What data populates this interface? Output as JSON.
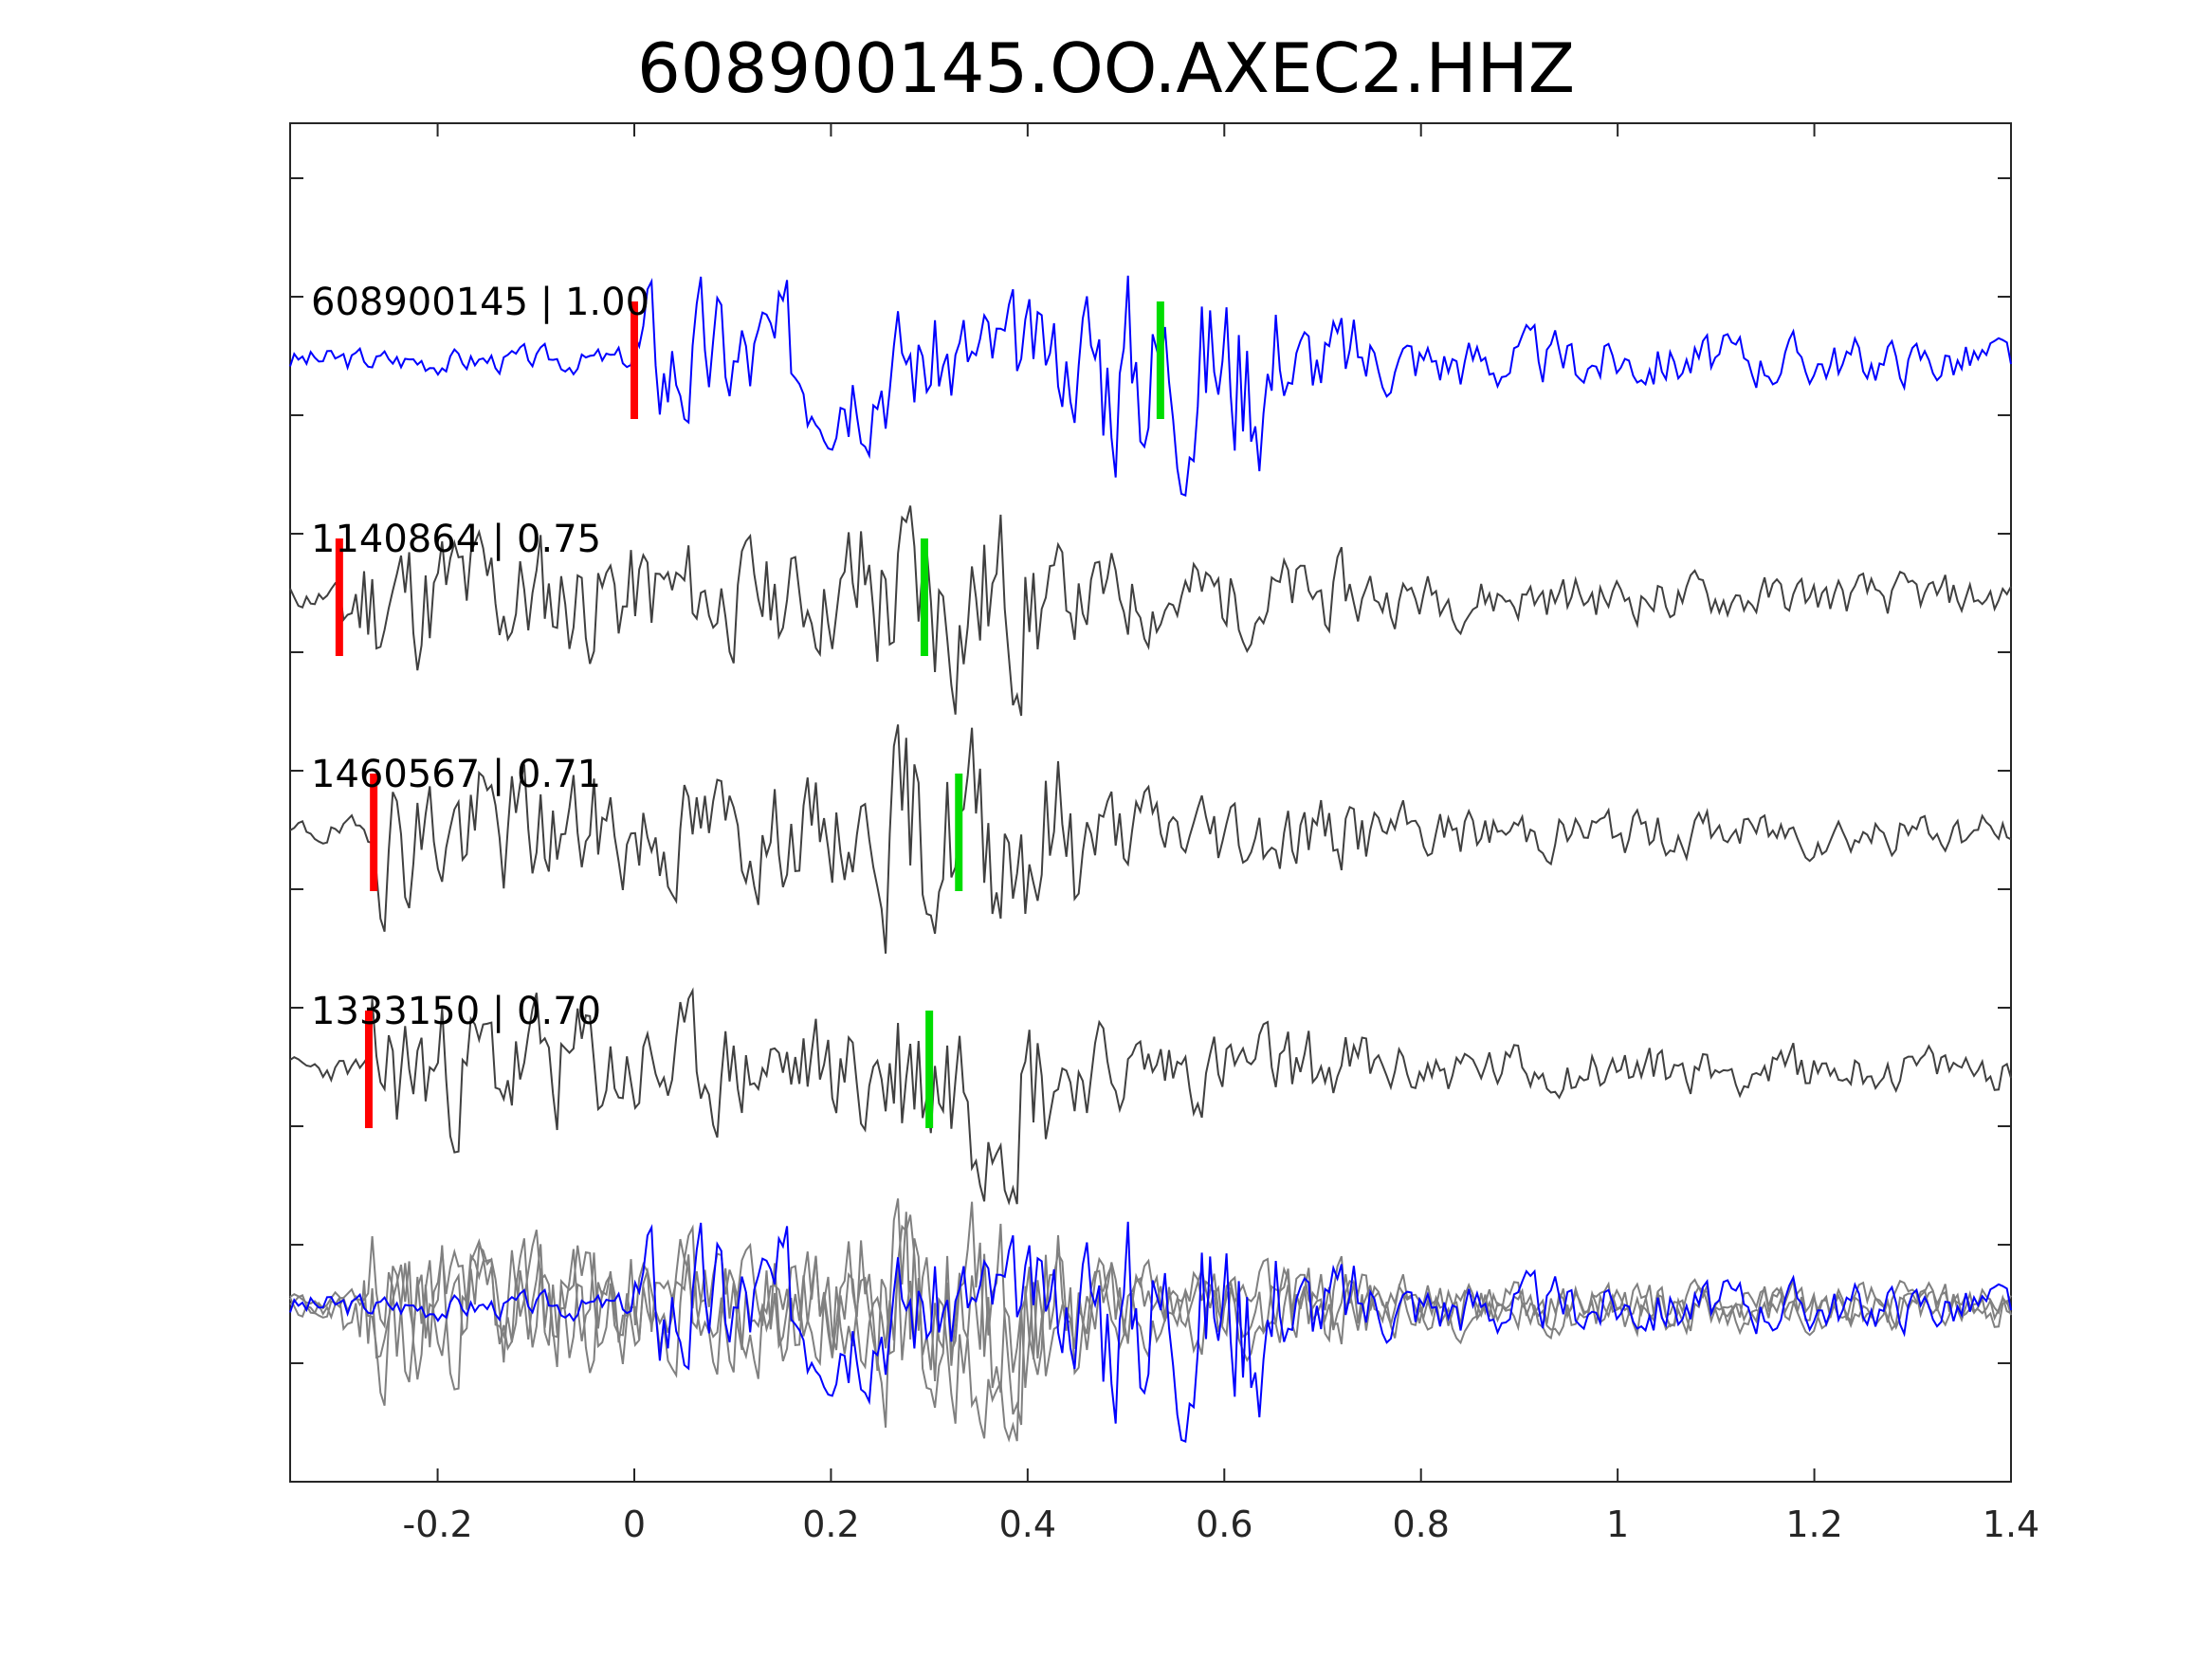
{
  "chart_data": {
    "type": "line",
    "title": "608900145.OO.AXEC2.HHZ",
    "xlabel": "",
    "ylabel": "",
    "xlim": [
      -0.35,
      1.4
    ],
    "x_ticks": [
      "-0.2",
      "0",
      "0.2",
      "0.4",
      "0.6",
      "0.8",
      "1",
      "1.2",
      "1.4"
    ],
    "x_tick_values": [
      -0.2,
      0,
      0.2,
      0.4,
      0.6,
      0.8,
      1.0,
      1.2,
      1.4
    ],
    "grid": false,
    "colors": {
      "master": "#0000ff",
      "event": "#404040",
      "overlay": "#808080",
      "p_pick": "#ff0000",
      "s_pick": "#00dd00"
    },
    "traces": [
      {
        "id": "608900145",
        "cc": "1.00",
        "label": "608900145 | 1.00",
        "color": "#0000ff",
        "p_pick": 0.0,
        "s_pick": 0.535,
        "seed": 3
      },
      {
        "id": "1140864",
        "cc": "0.75",
        "label": "1140864 | 0.75",
        "color": "#404040",
        "p_pick": -0.3,
        "s_pick": 0.295,
        "seed": 11
      },
      {
        "id": "1460567",
        "cc": "0.71",
        "label": "1460567 | 0.71",
        "color": "#404040",
        "p_pick": -0.265,
        "s_pick": 0.33,
        "seed": 19
      },
      {
        "id": "1333150",
        "cc": "0.70",
        "label": "1333150 | 0.70",
        "color": "#404040",
        "p_pick": -0.27,
        "s_pick": 0.3,
        "seed": 23
      }
    ],
    "overlay_note_visible": false
  }
}
